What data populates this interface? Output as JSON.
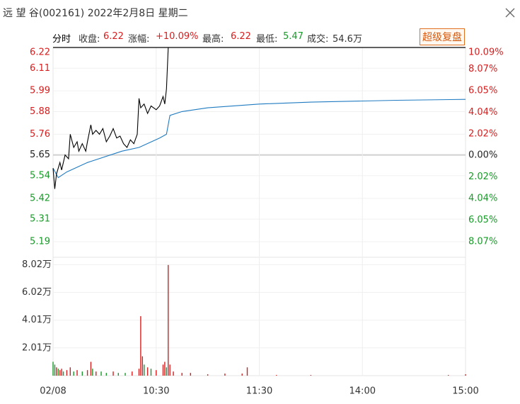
{
  "header": {
    "title": "远 望 谷(002161) 2022年2月8日 星期二",
    "button": "超级复盘"
  },
  "summary": {
    "mode": "分时",
    "close_label": "收盘:",
    "close": "6.22",
    "change_label": "涨幅:",
    "change": "+10.09%",
    "high_label": "最高:",
    "high": "6.22",
    "low_label": "最低:",
    "low": "5.47",
    "volume_label": "成交:",
    "volume": "54.6万"
  },
  "chart_data": {
    "type": "intraday",
    "xlim": [
      0,
      240
    ],
    "xticks": [
      {
        "value": 0,
        "label": "02/08"
      },
      {
        "value": 60,
        "label": "10:30"
      },
      {
        "value": 120,
        "label": "11:30"
      },
      {
        "value": 180,
        "label": "14:00"
      },
      {
        "value": 240,
        "label": "15:00"
      }
    ],
    "ylim": [
      5.19,
      6.22
    ],
    "yticks": [
      6.22,
      6.11,
      5.99,
      5.88,
      5.76,
      5.65,
      5.54,
      5.42,
      5.31,
      5.19
    ],
    "y2lim": [
      -8.07,
      10.09
    ],
    "y2ticks": [
      {
        "value": 10.09,
        "label": "10.09%"
      },
      {
        "value": 8.07,
        "label": "8.07%"
      },
      {
        "value": 6.05,
        "label": "6.05%"
      },
      {
        "value": 4.04,
        "label": "4.04%"
      },
      {
        "value": 2.02,
        "label": "2.02%"
      },
      {
        "value": 0,
        "label": "0.00%"
      },
      {
        "value": -2.02,
        "label": "2.02%"
      },
      {
        "value": -4.04,
        "label": "4.04%"
      },
      {
        "value": -6.05,
        "label": "6.05%"
      },
      {
        "value": -8.07,
        "label": "8.07%"
      }
    ],
    "price": {
      "color": "#000000",
      "x": [
        0,
        1,
        2,
        4,
        5,
        7,
        9,
        10,
        12,
        14,
        15,
        17,
        19,
        20,
        22,
        23,
        25,
        27,
        29,
        31,
        33,
        35,
        37,
        39,
        41,
        43,
        45,
        47,
        49,
        50,
        51,
        53,
        55,
        57,
        60,
        62,
        64,
        65,
        66,
        67,
        240
      ],
      "values": [
        5.58,
        5.47,
        5.55,
        5.61,
        5.57,
        5.65,
        5.63,
        5.76,
        5.69,
        5.72,
        5.67,
        5.71,
        5.67,
        5.72,
        5.81,
        5.76,
        5.78,
        5.76,
        5.79,
        5.72,
        5.75,
        5.79,
        5.74,
        5.75,
        5.71,
        5.69,
        5.73,
        5.71,
        5.76,
        5.95,
        5.9,
        5.92,
        5.87,
        5.91,
        5.89,
        5.91,
        5.96,
        5.92,
        6.0,
        6.22,
        6.22
      ]
    },
    "average": {
      "color": "#1f7bc1",
      "x": [
        0,
        3,
        8,
        20,
        40,
        50,
        62,
        66,
        68,
        75,
        90,
        120,
        150,
        200,
        240
      ],
      "values": [
        5.58,
        5.53,
        5.56,
        5.61,
        5.67,
        5.69,
        5.74,
        5.76,
        5.86,
        5.88,
        5.9,
        5.92,
        5.93,
        5.94,
        5.945
      ]
    },
    "volume": {
      "ylim": [
        0,
        8.3
      ],
      "yticks": [
        {
          "value": 2.01,
          "label": "2.01万"
        },
        {
          "value": 4.01,
          "label": "4.01万"
        },
        {
          "value": 6.02,
          "label": "6.02万"
        },
        {
          "value": 8.02,
          "label": "8.02万"
        }
      ],
      "x": [
        0,
        1,
        2,
        3,
        4,
        5,
        6,
        8,
        10,
        12,
        14,
        17,
        20,
        22,
        23,
        25,
        28,
        31,
        35,
        38,
        42,
        46,
        50,
        51,
        52,
        53,
        55,
        57,
        60,
        64,
        65,
        66,
        67,
        68,
        70,
        75,
        80,
        90,
        100,
        110,
        113,
        130,
        150,
        230,
        240
      ],
      "values": [
        1.0,
        0.8,
        0.6,
        0.5,
        0.4,
        0.5,
        0.3,
        0.4,
        0.6,
        0.3,
        0.4,
        0.3,
        0.4,
        1.0,
        0.5,
        0.3,
        0.3,
        0.2,
        0.3,
        0.2,
        0.2,
        0.3,
        0.5,
        4.3,
        1.4,
        0.8,
        0.6,
        0.5,
        0.4,
        0.8,
        1.0,
        0.6,
        8.0,
        0.8,
        0.3,
        0.2,
        0.2,
        0.1,
        0.15,
        0.15,
        0.6,
        0.05,
        0.05,
        0.05,
        0.1
      ],
      "colors": [
        "#1a9a2a",
        "#1a9a2a",
        "#d42020",
        "#1a9a2a",
        "#d42020",
        "#d42020",
        "#1a9a2a",
        "#d42020",
        "#d42020",
        "#1a9a2a",
        "#d42020",
        "#1a9a2a",
        "#d42020",
        "#d42020",
        "#1a9a2a",
        "#d42020",
        "#1a9a2a",
        "#1a9a2a",
        "#d42020",
        "#1a9a2a",
        "#1a9a2a",
        "#d42020",
        "#d42020",
        "#d42020",
        "#d42020",
        "#1a9a2a",
        "#d42020",
        "#1a9a2a",
        "#d42020",
        "#d42020",
        "#d42020",
        "#1a9a2a",
        "#d42020",
        "#d42020",
        "#d42020",
        "#d42020",
        "#d42020",
        "#d42020",
        "#d42020",
        "#d42020",
        "#d42020",
        "#d42020",
        "#d42020",
        "#d42020",
        "#d42020"
      ]
    }
  }
}
